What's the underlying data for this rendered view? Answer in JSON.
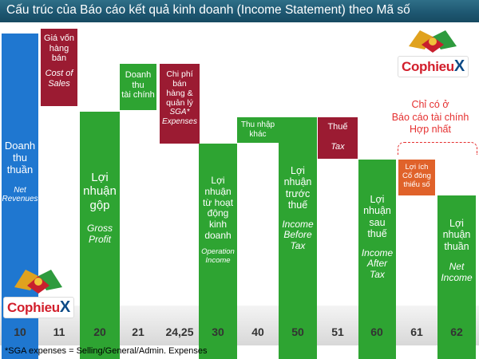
{
  "title": "Cấu trúc của Báo cáo kết quả kinh doanh (Income Statement) theo Mã số",
  "boxes": [
    {
      "vn": "Doanh\nthu\nthuần",
      "en": "Net\nRevenues",
      "color": "#1f77d0"
    },
    {
      "vn": "Giá vốn\nhàng\nbán",
      "en": "Cost of\nSales",
      "color": "#9b1b32"
    },
    {
      "vn": "Lợi\nnhuận\ngộp",
      "en": "Gross\nProfit",
      "color": "#2ea432"
    },
    {
      "vn": "Doanh\nthu\ntài chính",
      "en": "",
      "color": "#2ea432"
    },
    {
      "vn": "Chi phí\nbán\nhàng &\nquản lý",
      "en": "SGA*\nExpenses",
      "color": "#9b1b32"
    },
    {
      "vn": "Lợi\nnhuận\ntừ hoạt\nđộng\nkinh\ndoanh",
      "en": "Operation\nIncome",
      "color": "#2ea432"
    },
    {
      "vn": "Thu nhập\nkhác",
      "en": "",
      "color": "#2ea432"
    },
    {
      "vn": "Lợi\nnhuận\ntrước\nthuế",
      "en": "Income\nBefore\nTax",
      "color": "#2ea432"
    },
    {
      "vn": "Thuế",
      "en": "Tax",
      "color": "#9b1b32"
    },
    {
      "vn": "Lợi\nnhuận\nsau\nthuế",
      "en": "Income\nAfter\nTax",
      "color": "#2ea432"
    },
    {
      "vn": "Lợi ích\nCổ đông\nthiểu số",
      "en": "",
      "color": "#e0622a"
    },
    {
      "vn": "Lợi\nnhuận\nthuần",
      "en": "Net\nIncome",
      "color": "#2ea432"
    }
  ],
  "codes": [
    "10",
    "11",
    "20",
    "21",
    "24,25",
    "30",
    "40",
    "50",
    "51",
    "60",
    "61",
    "62"
  ],
  "consolidated_note": "Chỉ có ở\nBáo cáo tài chính\nHợp nhất",
  "footnote": "*SGA expenses = Selling/General/Admin. Expenses",
  "logo": {
    "text": "Cophieu",
    "x": "X",
    "sub": ".com"
  }
}
